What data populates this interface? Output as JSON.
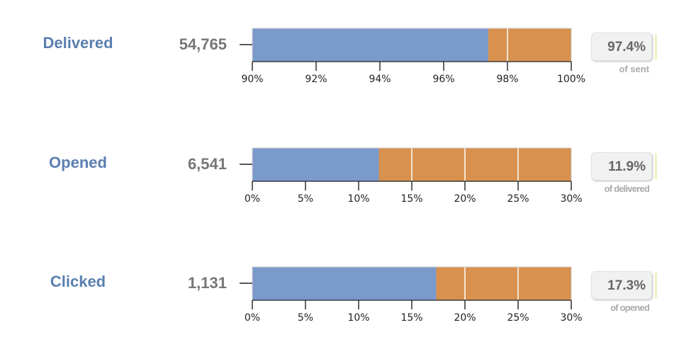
{
  "colors": {
    "base": "#7b9acc",
    "remainder": "#d8914f",
    "label": "#5a7fb0",
    "count": "#777777"
  },
  "chart_data": [
    {
      "type": "bar",
      "stage": "Delivered",
      "count": "54,765",
      "value": 97.4,
      "domain": [
        90,
        100
      ],
      "ticks": [
        90,
        92,
        94,
        96,
        98,
        100
      ],
      "tick_labels": [
        "90%",
        "92%",
        "94%",
        "96%",
        "98%",
        "100%"
      ],
      "rate_label": "97.4%",
      "rate_caption": "of sent"
    },
    {
      "type": "bar",
      "stage": "Opened",
      "count": "6,541",
      "value": 11.9,
      "domain": [
        0,
        30
      ],
      "ticks": [
        0,
        5,
        10,
        15,
        20,
        25,
        30
      ],
      "tick_labels": [
        "0%",
        "5%",
        "10%",
        "15%",
        "20%",
        "25%",
        "30%"
      ],
      "rate_label": "11.9%",
      "rate_caption": "of delivered"
    },
    {
      "type": "bar",
      "stage": "Clicked",
      "count": "1,131",
      "value": 17.3,
      "domain": [
        0,
        30
      ],
      "ticks": [
        0,
        5,
        10,
        15,
        20,
        25,
        30
      ],
      "tick_labels": [
        "0%",
        "5%",
        "10%",
        "15%",
        "20%",
        "25%",
        "30%"
      ],
      "rate_label": "17.3%",
      "rate_caption": "of opened"
    }
  ]
}
